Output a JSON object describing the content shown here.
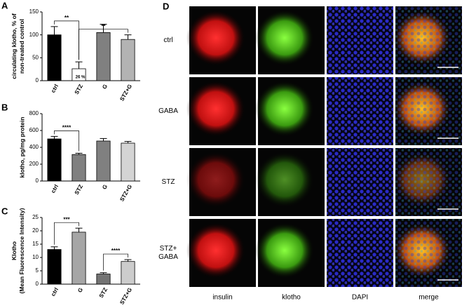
{
  "chart_data": [
    {
      "type": "bar",
      "panel": "A",
      "ylabel": [
        "circulating klotho, % of",
        "non-treated control"
      ],
      "categories": [
        "ctrl",
        "STZ",
        "G",
        "STZ+G"
      ],
      "values": [
        100,
        26,
        105,
        90
      ],
      "errors": [
        18,
        15,
        18,
        10
      ],
      "value_labels": [
        null,
        "26 %",
        null,
        null
      ],
      "colors": [
        "#000000",
        "#ffffff",
        "#808080",
        "#b3b3b3"
      ],
      "ylim": [
        0,
        150
      ],
      "yticks": [
        0,
        50,
        100,
        150
      ],
      "annotations": [
        {
          "text": "**",
          "from": 0,
          "to": 1
        },
        {
          "text": "**",
          "from": 1,
          "to": 3
        }
      ]
    },
    {
      "type": "bar",
      "panel": "B",
      "ylabel": [
        "klotho, pg/mg protein"
      ],
      "categories": [
        "ctrl",
        "STZ",
        "G",
        "STZ+G"
      ],
      "values": [
        500,
        315,
        475,
        450
      ],
      "errors": [
        30,
        15,
        30,
        20
      ],
      "colors": [
        "#000000",
        "#808080",
        "#808080",
        "#d4d4d4"
      ],
      "ylim": [
        0,
        800
      ],
      "yticks": [
        0,
        200,
        400,
        600,
        800
      ],
      "annotations": [
        {
          "text": "****",
          "from": 0,
          "to": 1
        }
      ]
    },
    {
      "type": "bar",
      "panel": "C",
      "ylabel": [
        "Klotho",
        "(Mean Fluorescence Intensity)"
      ],
      "categories": [
        "ctrl",
        "G",
        "STZ",
        "STZ+G"
      ],
      "values": [
        13,
        19.5,
        3.8,
        8.5
      ],
      "errors": [
        1,
        1.5,
        0.5,
        0.7
      ],
      "colors": [
        "#000000",
        "#a6a6a6",
        "#737373",
        "#cccccc"
      ],
      "ylim": [
        0,
        25
      ],
      "yticks": [
        0,
        5,
        10,
        15,
        20,
        25
      ],
      "annotations": [
        {
          "text": "***",
          "from": 0,
          "to": 1
        },
        {
          "text": "****",
          "from": 2,
          "to": 3
        }
      ]
    }
  ],
  "panel_d": {
    "panel": "D",
    "rows": [
      [
        "ctrl"
      ],
      [
        "GABA"
      ],
      [
        "STZ"
      ],
      [
        "STZ+",
        "GABA"
      ]
    ],
    "columns": [
      "insulin",
      "klotho",
      "DAPI",
      "merge"
    ]
  }
}
